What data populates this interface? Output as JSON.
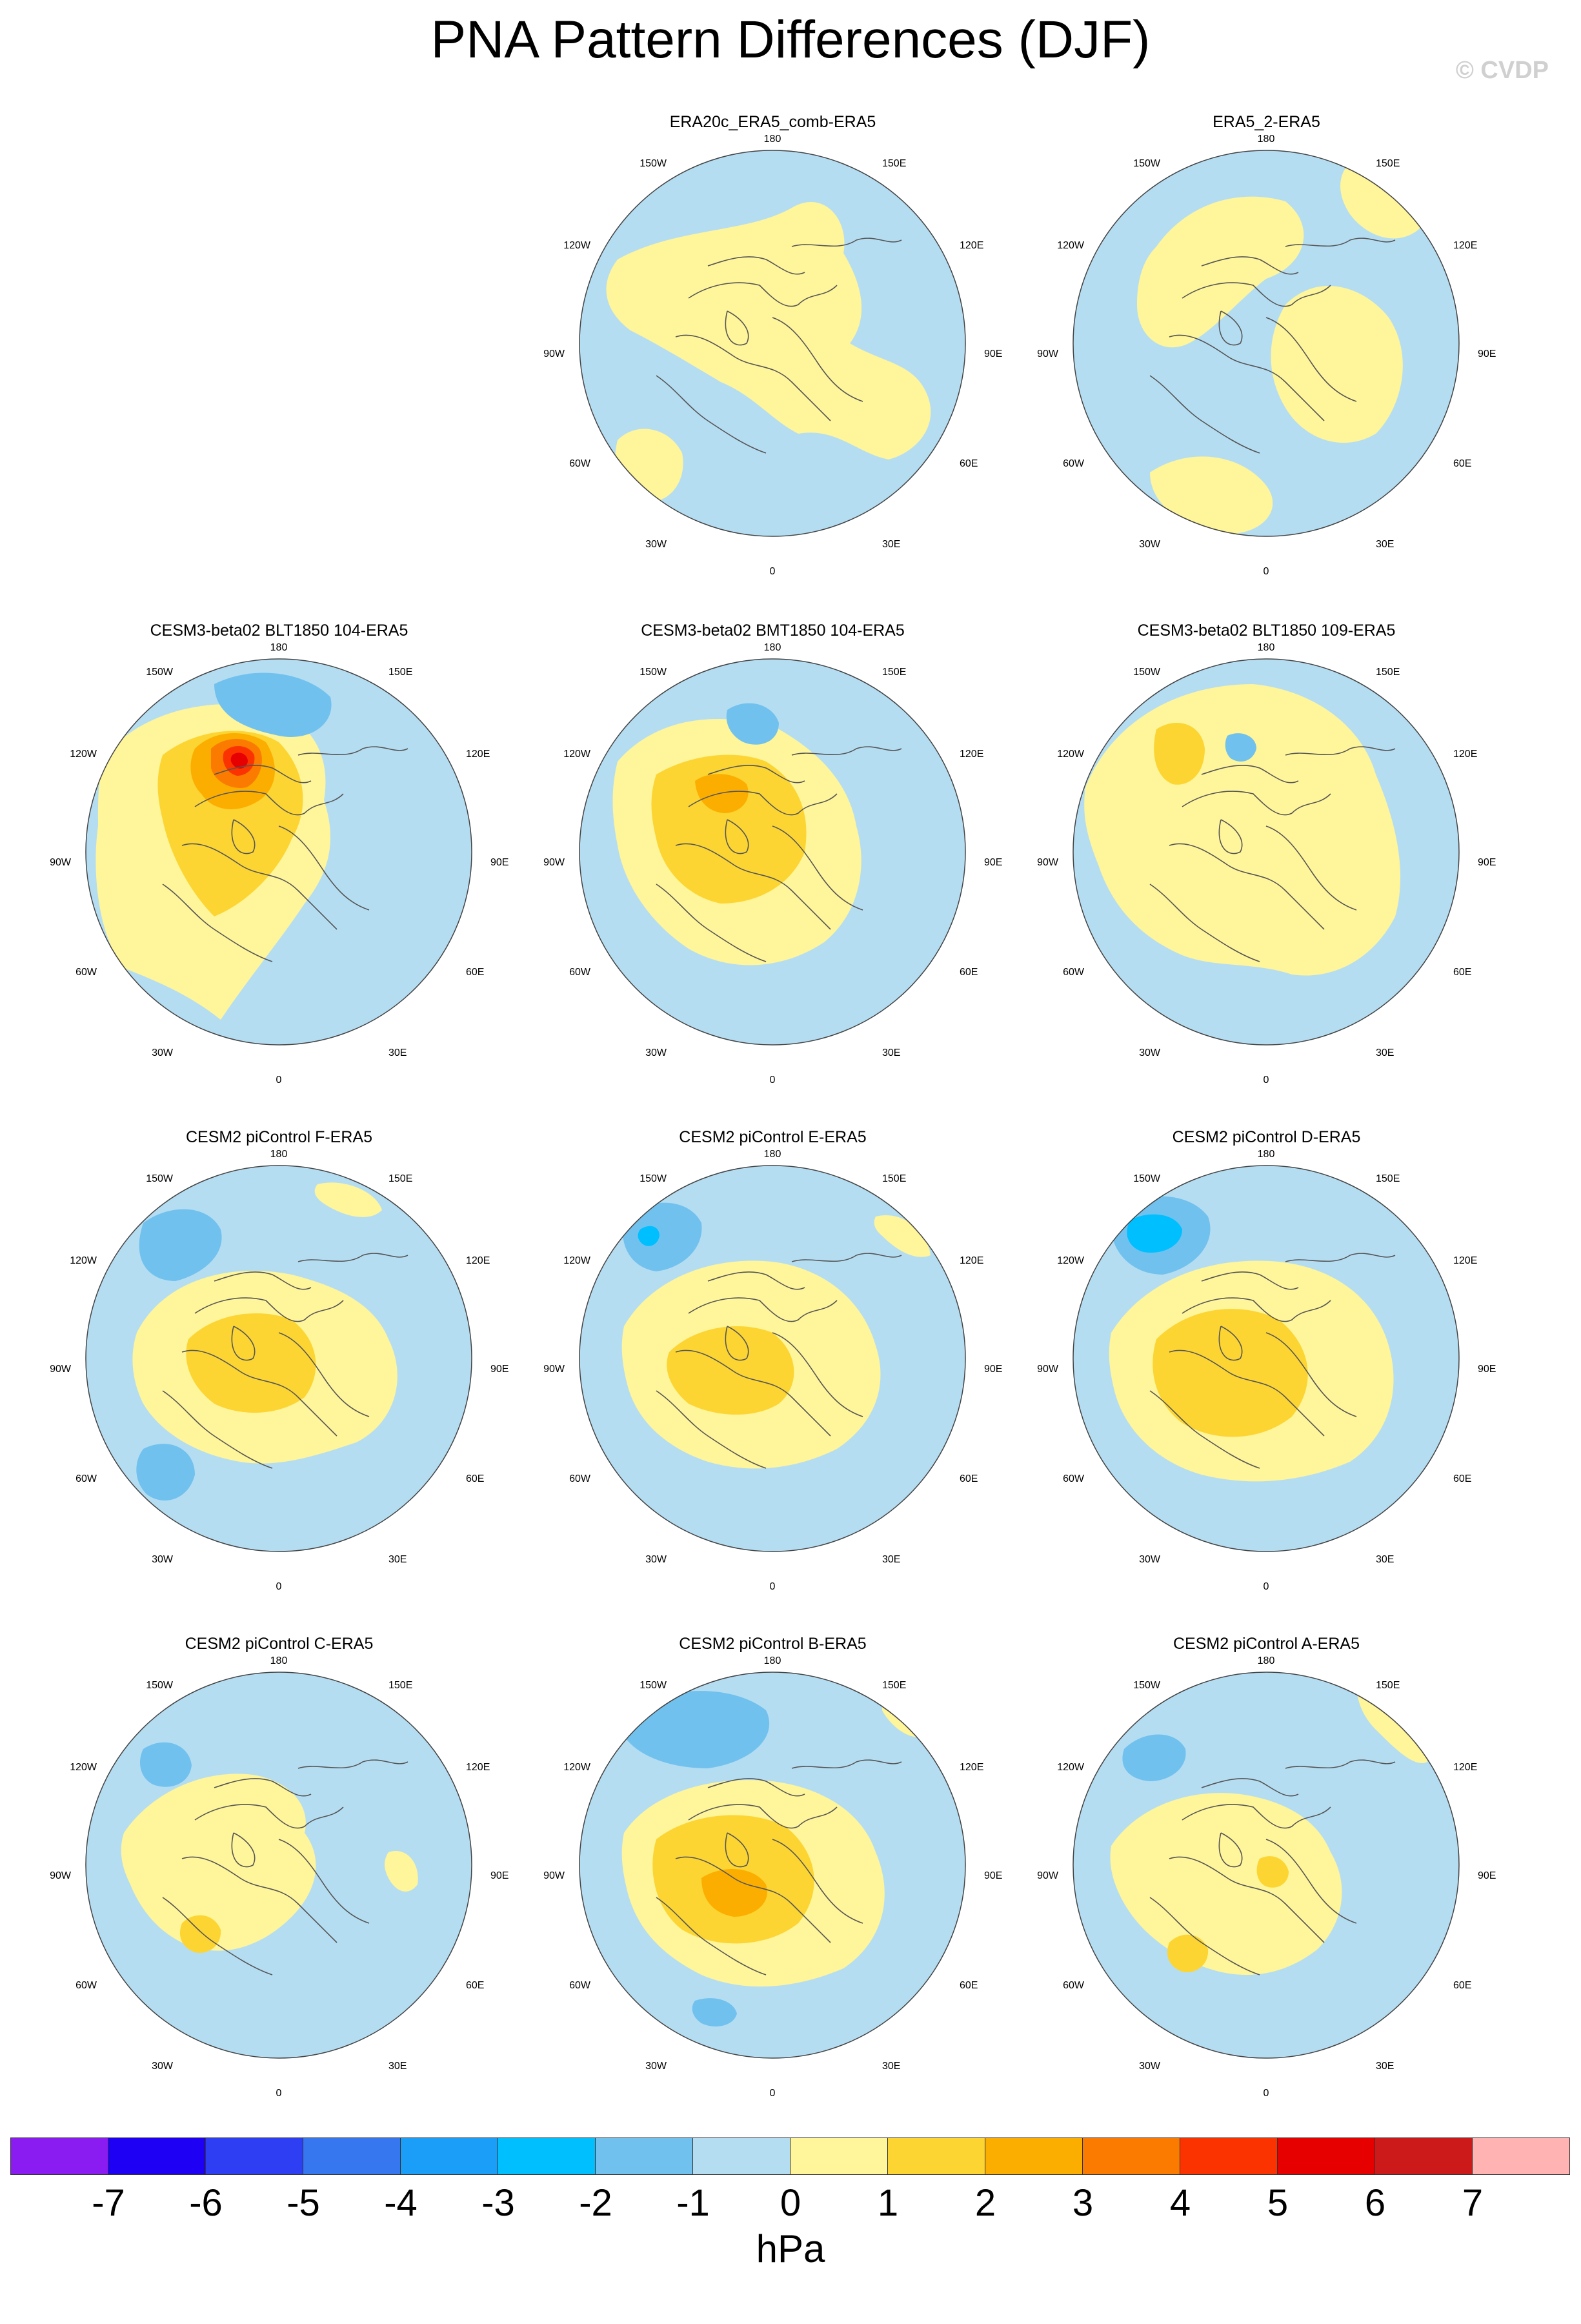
{
  "title": "PNA Pattern Differences (DJF)",
  "copyright": "© CVDP",
  "longitude_labels": {
    "top": "180",
    "bottom": "0",
    "l150": "150W",
    "l120": "120W",
    "l90": "90W",
    "l60": "60W",
    "l30": "30W",
    "r150": "150E",
    "r120": "120E",
    "r90": "90E",
    "r60": "60E",
    "r30": "30E"
  },
  "colors": {
    "ocean_neg": "#b5ddf2",
    "neg2": "#71c1ee",
    "neg3": "#00bfff",
    "pos1": "#fff59a",
    "pos2": "#fcd533",
    "pos3": "#fcae00",
    "pos4": "#fb7b00",
    "pos5": "#fb3300",
    "pos6": "#e60000",
    "coast": "#555555"
  },
  "panels": [
    {
      "title": "ERA20c_ERA5_comb-ERA5",
      "pattern": "era20c"
    },
    {
      "title": "ERA5_2-ERA5",
      "pattern": "era5_2"
    },
    {
      "title": "CESM3-beta02 BLT1850 104-ERA5",
      "pattern": "blt104"
    },
    {
      "title": "CESM3-beta02 BMT1850 104-ERA5",
      "pattern": "bmt104"
    },
    {
      "title": "CESM3-beta02 BLT1850 109-ERA5",
      "pattern": "blt109"
    },
    {
      "title": "CESM2 piControl F-ERA5",
      "pattern": "picf"
    },
    {
      "title": "CESM2 piControl E-ERA5",
      "pattern": "pice"
    },
    {
      "title": "CESM2 piControl D-ERA5",
      "pattern": "picd"
    },
    {
      "title": "CESM2 piControl C-ERA5",
      "pattern": "picc"
    },
    {
      "title": "CESM2 piControl B-ERA5",
      "pattern": "picb"
    },
    {
      "title": "CESM2 piControl A-ERA5",
      "pattern": "pica"
    }
  ],
  "colorbar": {
    "colors": [
      "#8a1cf2",
      "#1e00f5",
      "#2e3ef2",
      "#3677f0",
      "#1a9ef7",
      "#00bfff",
      "#71c1ee",
      "#b5ddf2",
      "#fff59a",
      "#fcd533",
      "#fcae00",
      "#fb7b00",
      "#fb3300",
      "#e60000",
      "#cc1a1a",
      "#ffb3b3"
    ],
    "ticks": [
      "-7",
      "-6",
      "-5",
      "-4",
      "-3",
      "-2",
      "-1",
      "0",
      "1",
      "2",
      "3",
      "4",
      "5",
      "6",
      "7"
    ],
    "units": "hPa"
  }
}
